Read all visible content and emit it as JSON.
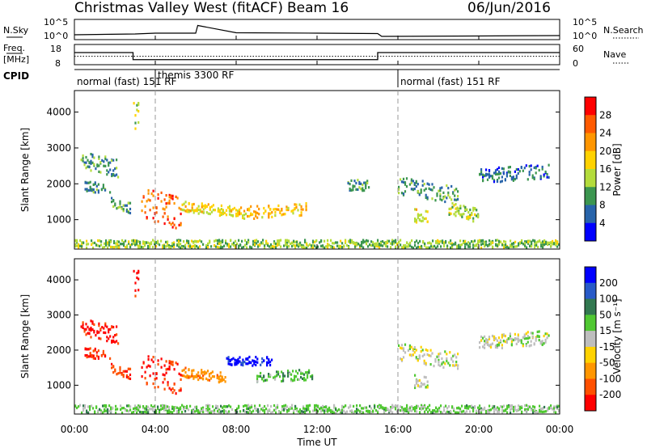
{
  "header": {
    "title": "Christmas Valley West (fitACF)",
    "beam": "Beam 16",
    "date": "06/Jun/2016"
  },
  "sky_panel": {
    "left_label": "N.Sky",
    "left_ticks": [
      "10^5",
      "10^0"
    ],
    "right_ticks": [
      "10^5",
      "10^0"
    ],
    "right_label": "N.Search"
  },
  "freq_panel": {
    "left_label_line1": "Freq.",
    "left_label_line2": "[MHz]",
    "left_ticks": [
      "18",
      "8"
    ],
    "right_ticks": [
      "60",
      "0"
    ],
    "right_label": "Nave"
  },
  "cpid": {
    "label": "CPID",
    "segments": [
      {
        "text": "normal (fast) 151 RF",
        "start_hour": 0
      },
      {
        "text": "themis 3300 RF",
        "start_hour": 4
      },
      {
        "text": "normal (fast) 151 RF",
        "start_hour": 16
      }
    ]
  },
  "time_axis": {
    "label": "Time UT",
    "ticks": [
      "00:00",
      "04:00",
      "08:00",
      "12:00",
      "16:00",
      "20:00",
      "00:00"
    ]
  },
  "power_colorbar": {
    "label": "Power [dB]",
    "ticks": [
      "28",
      "24",
      "20",
      "16",
      "12",
      "8",
      "4"
    ],
    "colors": [
      "#ff0000",
      "#ff5a00",
      "#ff9600",
      "#ffd200",
      "#b4dc3c",
      "#3c9650",
      "#2864aa",
      "#0000ff"
    ]
  },
  "velocity_colorbar": {
    "label": "Velocity [m s⁻¹]",
    "ticks": [
      "200",
      "100",
      "50",
      "15",
      "-15",
      "-50",
      "-100",
      "-200"
    ],
    "colors": [
      "#0000ff",
      "#285ac8",
      "#327850",
      "#50c832",
      "#bebebe",
      "#ffd200",
      "#ff9600",
      "#ff5000",
      "#ff0000"
    ]
  },
  "chart_data": [
    {
      "type": "line",
      "title": "N.Sky / N.Search",
      "x_unit": "hours UT",
      "xlim": [
        0,
        24
      ],
      "series": [
        {
          "name": "N.Sky",
          "x": [
            0,
            3,
            4,
            6,
            6.1,
            8,
            12,
            15,
            15.2,
            20,
            24
          ],
          "y": [
            1.2,
            1.4,
            1.6,
            1.6,
            3.5,
            1.7,
            1.6,
            1.5,
            0.8,
            0.9,
            1.0
          ]
        }
      ]
    },
    {
      "type": "line",
      "title": "Freq. / Nave",
      "xlim": [
        0,
        24
      ],
      "ylim_left": [
        8,
        18
      ],
      "ylim_right": [
        0,
        60
      ],
      "series": [
        {
          "name": "Freq.",
          "x": [
            0,
            2.9,
            2.9,
            15,
            15,
            24
          ],
          "y": [
            14,
            14,
            10.5,
            10.5,
            14,
            14
          ]
        },
        {
          "name": "Nave",
          "x": [
            0,
            24
          ],
          "y": [
            25,
            25
          ]
        }
      ]
    },
    {
      "type": "heatmap",
      "title": "Power",
      "xlabel": "Time UT",
      "ylabel": "Slant Range [km]",
      "xlim": [
        0,
        24
      ],
      "ylim": [
        180,
        4600
      ],
      "y_ticks": [
        1000,
        2000,
        3000,
        4000
      ],
      "zlim": [
        0,
        30
      ],
      "echo_bands": [
        {
          "t0": 0.3,
          "t1": 2.2,
          "r0": 2400,
          "r1": 2900,
          "z": 9,
          "slope": -250
        },
        {
          "t0": 0.5,
          "t1": 1.8,
          "r0": 1750,
          "r1": 2050,
          "z": 8,
          "slope": 0
        },
        {
          "t0": 1.8,
          "t1": 2.8,
          "r0": 1300,
          "r1": 1600,
          "z": 10,
          "slope": -150
        },
        {
          "t0": 2.9,
          "t1": 3.2,
          "r0": 3500,
          "r1": 4300,
          "z": 14,
          "slope": 0
        },
        {
          "t0": 3.3,
          "t1": 5.3,
          "r0": 1000,
          "r1": 1900,
          "z": 24,
          "slope": -300
        },
        {
          "t0": 5.3,
          "t1": 8.2,
          "r0": 1200,
          "r1": 1500,
          "z": 16,
          "slope": -150
        },
        {
          "t0": 8.2,
          "t1": 11.5,
          "r0": 1000,
          "r1": 1350,
          "z": 18,
          "slope": 100
        },
        {
          "t0": 13.5,
          "t1": 14.6,
          "r0": 1800,
          "r1": 2100,
          "z": 10,
          "slope": 0
        },
        {
          "t0": 16.0,
          "t1": 19.0,
          "r0": 1700,
          "r1": 2200,
          "z": 9,
          "slope": -300
        },
        {
          "t0": 16.8,
          "t1": 17.5,
          "r0": 900,
          "r1": 1300,
          "z": 15,
          "slope": 0
        },
        {
          "t0": 18.5,
          "t1": 20.0,
          "r0": 1100,
          "r1": 1500,
          "z": 14,
          "slope": -200
        },
        {
          "t0": 20.0,
          "t1": 23.5,
          "r0": 2000,
          "r1": 2400,
          "z": 6,
          "slope": 150
        },
        {
          "t0": 0.0,
          "t1": 24.0,
          "r0": 200,
          "r1": 420,
          "z": 12,
          "slope": 0
        }
      ]
    },
    {
      "type": "heatmap",
      "title": "Velocity",
      "xlabel": "Time UT",
      "ylabel": "Slant Range [km]",
      "xlim": [
        0,
        24
      ],
      "ylim": [
        180,
        4600
      ],
      "y_ticks": [
        1000,
        2000,
        3000,
        4000
      ],
      "zlim": [
        -250,
        250
      ],
      "echo_bands": [
        {
          "t0": 0.3,
          "t1": 2.2,
          "r0": 2400,
          "r1": 2900,
          "z": -220,
          "slope": -250
        },
        {
          "t0": 0.5,
          "t1": 1.8,
          "r0": 1750,
          "r1": 2050,
          "z": -200,
          "slope": 0
        },
        {
          "t0": 1.8,
          "t1": 2.8,
          "r0": 1300,
          "r1": 1600,
          "z": -180,
          "slope": -150
        },
        {
          "t0": 2.9,
          "t1": 3.2,
          "r0": 3500,
          "r1": 4300,
          "z": -220,
          "slope": 0
        },
        {
          "t0": 3.3,
          "t1": 5.3,
          "r0": 1000,
          "r1": 1900,
          "z": -200,
          "slope": -300
        },
        {
          "t0": 5.3,
          "t1": 7.5,
          "r0": 1200,
          "r1": 1500,
          "z": -80,
          "slope": -150
        },
        {
          "t0": 7.5,
          "t1": 9.8,
          "r0": 1550,
          "r1": 1800,
          "z": 220,
          "slope": 0
        },
        {
          "t0": 9.0,
          "t1": 11.8,
          "r0": 1050,
          "r1": 1350,
          "z": 40,
          "slope": 100
        },
        {
          "t0": 16.0,
          "t1": 19.0,
          "r0": 1700,
          "r1": 2200,
          "z": 0,
          "slope": -300
        },
        {
          "t0": 16.8,
          "t1": 17.5,
          "r0": 900,
          "r1": 1300,
          "z": 5,
          "slope": 0
        },
        {
          "t0": 20.0,
          "t1": 23.5,
          "r0": 2000,
          "r1": 2400,
          "z": 2,
          "slope": 150
        },
        {
          "t0": 0.0,
          "t1": 24.0,
          "r0": 200,
          "r1": 420,
          "z": 25,
          "slope": 0
        }
      ]
    }
  ]
}
